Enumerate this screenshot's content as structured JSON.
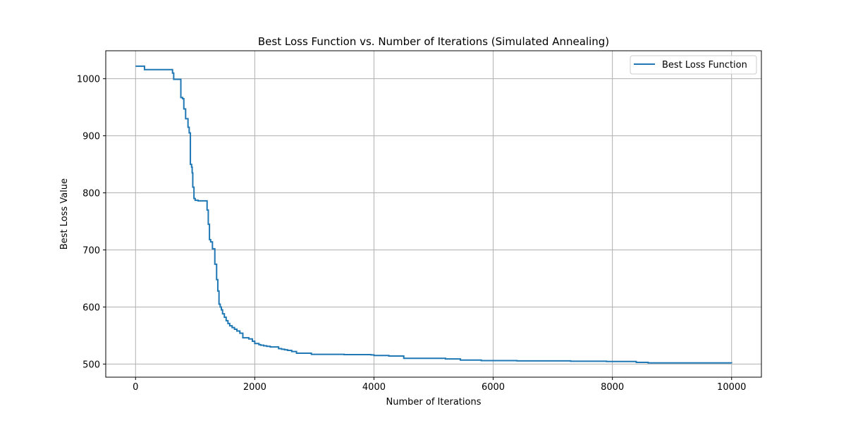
{
  "chart_data": {
    "type": "line",
    "title": "Best Loss Function vs. Number of Iterations (Simulated Annealing)",
    "xlabel": "Number of Iterations",
    "ylabel": "Best Loss Value",
    "xlim": [
      -500,
      10500
    ],
    "ylim": [
      477,
      1049
    ],
    "xticks": [
      0,
      2000,
      4000,
      6000,
      8000,
      10000
    ],
    "xtick_labels": [
      "0",
      "2000",
      "4000",
      "6000",
      "8000",
      "10000"
    ],
    "yticks": [
      500,
      600,
      700,
      800,
      900,
      1000
    ],
    "ytick_labels": [
      "500",
      "600",
      "700",
      "800",
      "900",
      "1000"
    ],
    "grid": true,
    "legend_position": "top-right",
    "series": [
      {
        "name": "Best Loss Function",
        "color": "#1f77b4",
        "step": true,
        "x": [
          0,
          150,
          620,
          640,
          760,
          790,
          810,
          840,
          880,
          900,
          920,
          940,
          950,
          960,
          980,
          1000,
          1050,
          1200,
          1220,
          1240,
          1260,
          1290,
          1330,
          1360,
          1380,
          1400,
          1420,
          1440,
          1460,
          1490,
          1520,
          1550,
          1580,
          1620,
          1660,
          1700,
          1750,
          1800,
          1900,
          1960,
          2000,
          2070,
          2100,
          2150,
          2200,
          2260,
          2400,
          2450,
          2500,
          2550,
          2620,
          2700,
          2950,
          3500,
          3950,
          4000,
          4250,
          4500,
          5200,
          5450,
          5800,
          6400,
          7300,
          7900,
          8400,
          8600,
          10000
        ],
        "y": [
          1022,
          1016,
          1010,
          999,
          967,
          965,
          947,
          930,
          915,
          905,
          850,
          845,
          835,
          810,
          790,
          787,
          786,
          770,
          745,
          718,
          714,
          702,
          675,
          648,
          628,
          605,
          600,
          595,
          588,
          582,
          576,
          571,
          567,
          564,
          561,
          558,
          554,
          546,
          544,
          540,
          536,
          534,
          533,
          532,
          531,
          530,
          527,
          526,
          525,
          524,
          522,
          519,
          517,
          516.5,
          516,
          515,
          514,
          510,
          509,
          507,
          506,
          505.5,
          505,
          504.5,
          503,
          502,
          501.5
        ]
      }
    ]
  }
}
